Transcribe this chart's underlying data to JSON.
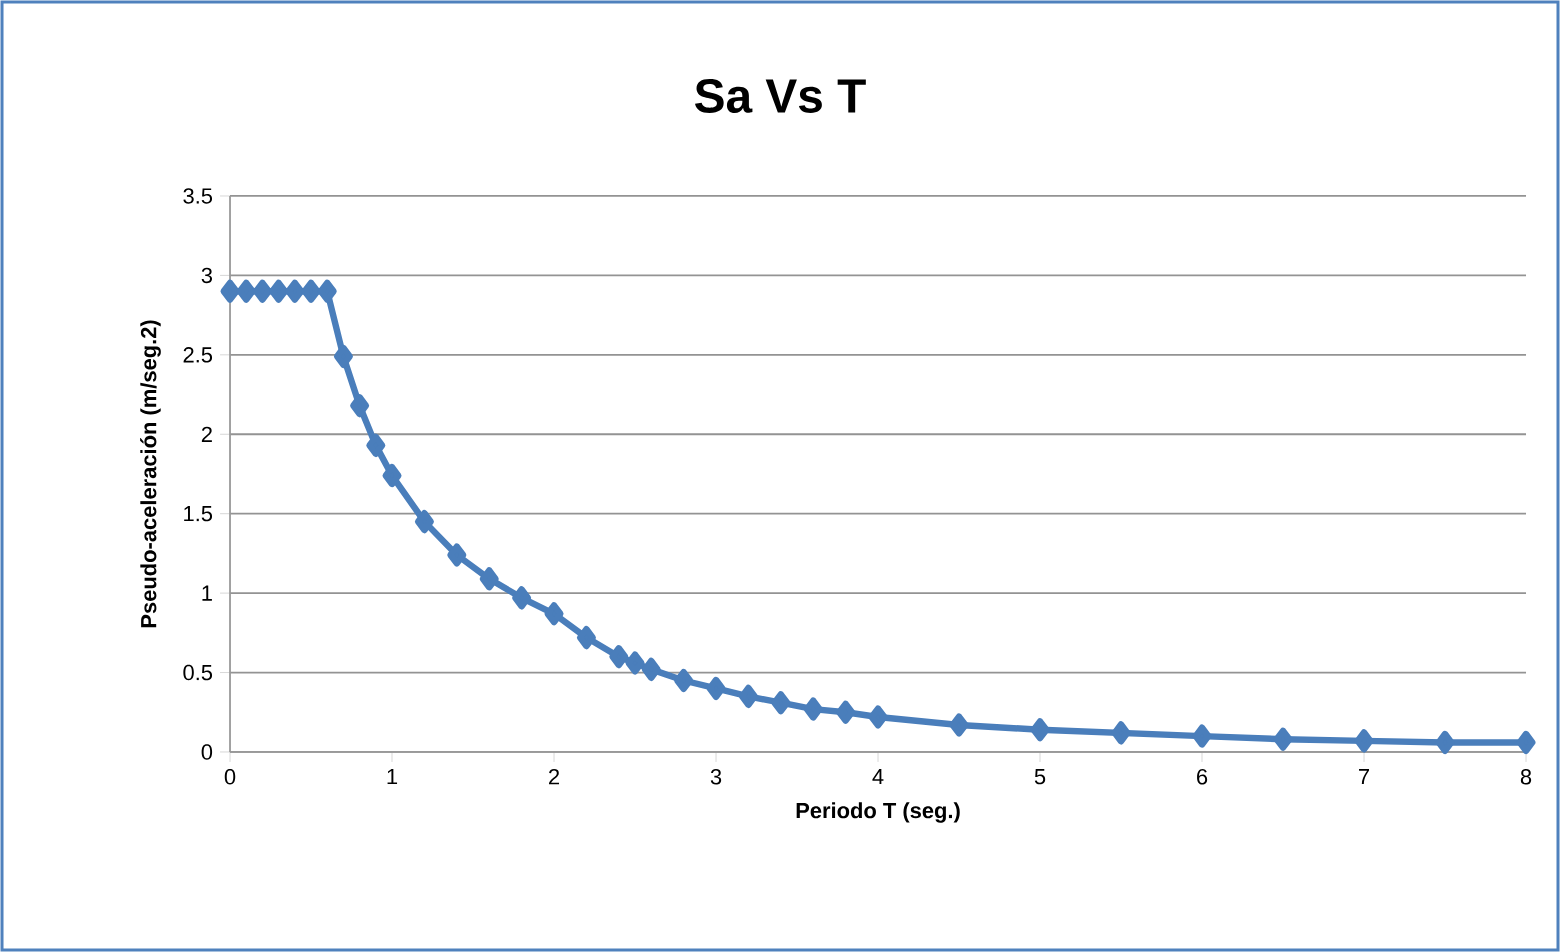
{
  "chart_data": {
    "type": "line",
    "title": "Sa Vs T",
    "xlabel": "Periodo T (seg.)",
    "ylabel": "Pseudo-aceleración  (m/seg.2)",
    "x": [
      0,
      0.1,
      0.2,
      0.3,
      0.4,
      0.5,
      0.6,
      0.7,
      0.8,
      0.9,
      1.0,
      1.2,
      1.4,
      1.6,
      1.8,
      2.0,
      2.2,
      2.4,
      2.5,
      2.6,
      2.8,
      3.0,
      3.2,
      3.4,
      3.6,
      3.8,
      4.0,
      4.5,
      5,
      5.5,
      6,
      6.5,
      7,
      7.5,
      8
    ],
    "series": [
      {
        "color": "#4a7ebb",
        "values": [
          2.9,
          2.9,
          2.9,
          2.9,
          2.9,
          2.9,
          2.9,
          2.49,
          2.18,
          1.93,
          1.74,
          1.45,
          1.24,
          1.09,
          0.97,
          0.87,
          0.72,
          0.6,
          0.56,
          0.52,
          0.45,
          0.4,
          0.35,
          0.31,
          0.27,
          0.25,
          0.22,
          0.17,
          0.14,
          0.12,
          0.1,
          0.08,
          0.07,
          0.06,
          0.06
        ]
      }
    ],
    "xlim": [
      0,
      8
    ],
    "xticks": [
      0,
      1,
      2,
      3,
      4,
      5,
      6,
      7,
      8
    ],
    "ylim": [
      0,
      3.5
    ],
    "yticks": [
      0,
      0.5,
      1,
      1.5,
      2,
      2.5,
      3,
      3.5
    ],
    "grid": "y",
    "marker": "diamond",
    "line_style": "solid"
  }
}
